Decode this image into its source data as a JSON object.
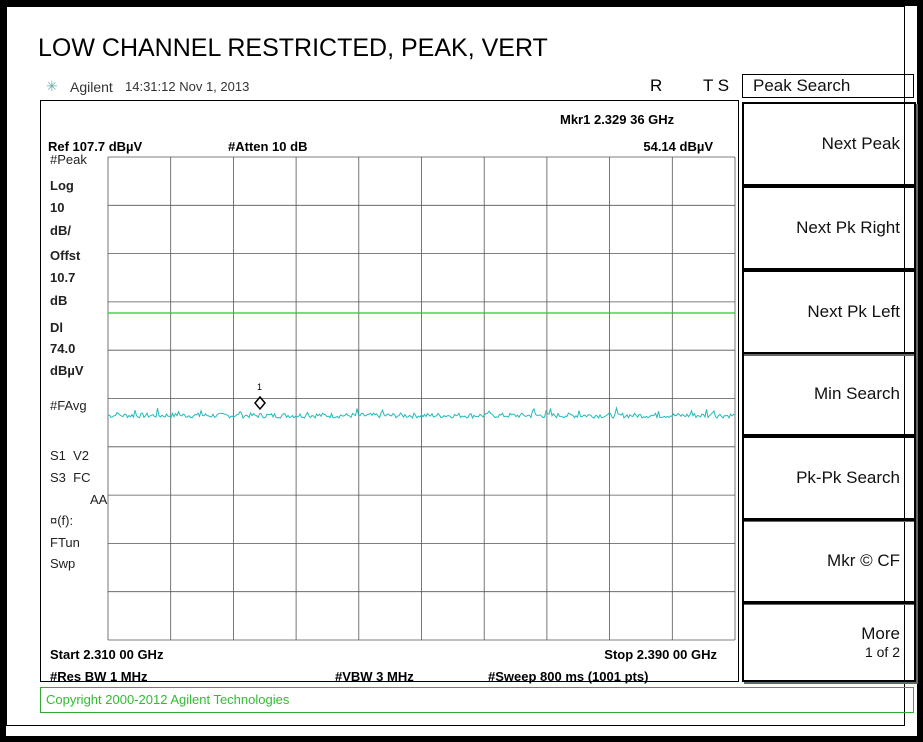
{
  "title": "LOW CHANNEL RESTRICTED, PEAK, VERT",
  "status": {
    "brand": "Agilent",
    "timestamp": "14:31:12 Nov 1, 2013",
    "r": "R",
    "ts": "T S"
  },
  "marker": {
    "label": "Mkr1 2.329 36 GHz",
    "amplitude": "54.14 dBµV",
    "number": "1"
  },
  "settings": {
    "ref": "Ref 107.7 dBµV",
    "atten": "#Atten 10 dB"
  },
  "side_labels": [
    "#Peak",
    "Log",
    "10",
    "dB/",
    "Offst",
    "10.7",
    "dB",
    "Dl",
    "74.0",
    "dBµV",
    "#FAvg",
    "S1  V2",
    "S3  FC",
    "AA",
    "¤(f):",
    "FTun",
    "Swp"
  ],
  "footer": {
    "start": "Start 2.310 00 GHz",
    "stop": "Stop 2.390 00 GHz",
    "rbw": "#Res BW 1 MHz",
    "vbw": "#VBW 3 MHz",
    "sweep": "#Sweep 800 ms (1001 pts)"
  },
  "copyright": "Copyright 2000-2012 Agilent Technologies",
  "menu": {
    "title": "Peak Search",
    "buttons": [
      {
        "label": "Next Peak"
      },
      {
        "label": "Next Pk Right"
      },
      {
        "label": "Next Pk Left"
      },
      {
        "label": "Min Search"
      },
      {
        "label": "Pk-Pk Search"
      },
      {
        "label": "Mkr © CF"
      },
      {
        "label": "More",
        "sub": "1 of 2"
      }
    ]
  }
}
